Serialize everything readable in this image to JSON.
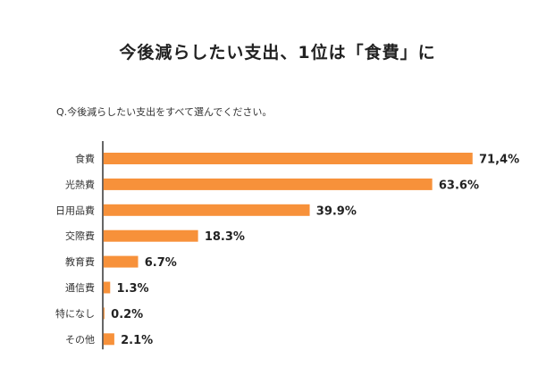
{
  "title": "今後減らしたい支出、1位は「食費」に",
  "question": "Q.今後減らしたい支出をすべて選んでください。",
  "colors": {
    "bar": "#f7913a",
    "axis": "#333333"
  },
  "chart_data": {
    "type": "bar",
    "orientation": "horizontal",
    "title": "今後減らしたい支出、1位は「食費」に",
    "subtitle": "Q.今後減らしたい支出をすべて選んでください。",
    "categories": [
      "食費",
      "光熱費",
      "日用品費",
      "交際費",
      "教育費",
      "通信費",
      "特になし",
      "その他"
    ],
    "values": [
      71.4,
      63.6,
      39.9,
      18.3,
      6.7,
      1.3,
      0.2,
      2.1
    ],
    "value_labels": [
      "71,4%",
      "63.6%",
      "39.9%",
      "18.3%",
      "6.7%",
      "1.3%",
      "0.2%",
      "2.1%"
    ],
    "xlim": [
      0,
      71.4
    ],
    "grid": false,
    "legend": "none"
  }
}
